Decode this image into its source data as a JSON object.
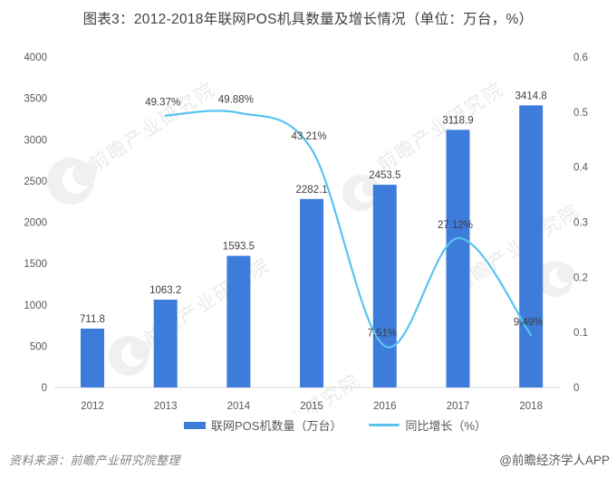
{
  "title": "图表3：2012-2018年联网POS机具数量及增长情况（单位：万台，%）",
  "chart_data": {
    "type": "bar",
    "combo": "bar+line dual-axis",
    "categories": [
      "2012",
      "2013",
      "2014",
      "2015",
      "2016",
      "2017",
      "2018"
    ],
    "series": [
      {
        "name": "联网POS机数量（万台）",
        "type": "bar",
        "axis": "left",
        "color": "#3d7cdb",
        "values": [
          711.8,
          1063.2,
          1593.5,
          2282.1,
          2453.5,
          3118.9,
          3414.8
        ],
        "labels": [
          "711.8",
          "1063.2",
          "1593.5",
          "2282.1",
          "2453.5",
          "3118.9",
          "3414.8"
        ]
      },
      {
        "name": "同比增长（%）",
        "type": "line",
        "axis": "right",
        "color": "#58c4ee",
        "start_category": "2013",
        "values": [
          0.4937,
          0.4988,
          0.4321,
          0.0751,
          0.2712,
          0.0949
        ],
        "labels": [
          "49.37%",
          "49.88%",
          "43.21%",
          "7.51%",
          "27.12%",
          "9.49%"
        ]
      }
    ],
    "left_axis": {
      "min": 0,
      "max": 4000,
      "ticks": [
        "0",
        "500",
        "1000",
        "1500",
        "2000",
        "2500",
        "3000",
        "3500",
        "4000"
      ]
    },
    "right_axis": {
      "min": 0,
      "max": 0.6,
      "ticks": [
        "0",
        "0.1",
        "0.2",
        "0.3",
        "0.4",
        "0.5",
        "0.6"
      ]
    },
    "grid": false,
    "legend_position": "bottom"
  },
  "legend": {
    "bar_label": "联网POS机数量（万台）",
    "line_label": "同比增长（%）"
  },
  "footer": {
    "source": "资料来源：前瞻产业研究院整理",
    "credit": "@前瞻经济学人APP"
  },
  "watermark": {
    "text": "前瞻产业研究院"
  },
  "colors": {
    "bar": "#3d7cdb",
    "line": "#58c4ee",
    "title_text": "#404040",
    "axis_text": "#595959",
    "data_label": "#404040",
    "baseline": "#d9d9d9",
    "source_text": "#828282",
    "credit_text": "#595959",
    "watermark": "#d6d6d6"
  }
}
